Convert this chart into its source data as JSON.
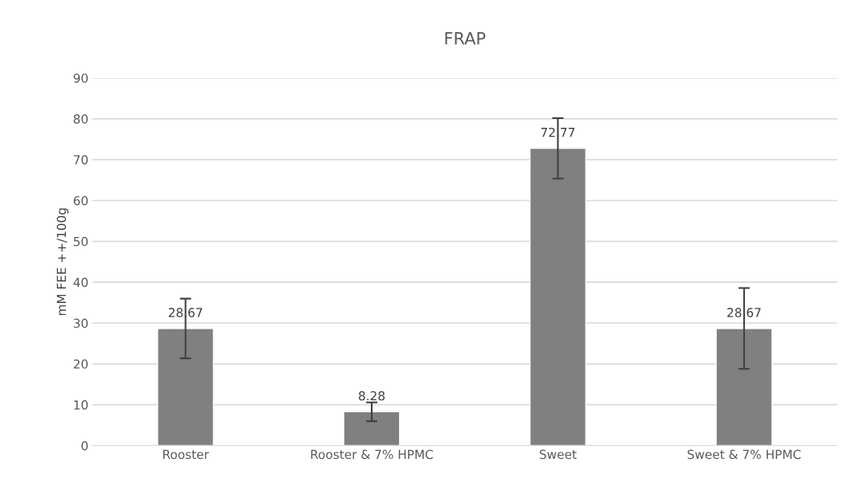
{
  "chart_data": {
    "type": "bar",
    "title": "FRAP",
    "ylabel": "mM FEE ++/100g",
    "categories": [
      "Rooster",
      "Rooster & 7% HPMC",
      "Sweet",
      "Sweet & 7% HPMC"
    ],
    "values": [
      28.67,
      8.28,
      72.77,
      28.67
    ],
    "errors": [
      7.3,
      2.3,
      7.4,
      9.9
    ],
    "color": "#808080",
    "ylim": [
      0,
      90
    ],
    "yticks": [
      0,
      10,
      20,
      30,
      40,
      50,
      60,
      70,
      80,
      90
    ],
    "grid": "y",
    "data_labels": true,
    "legend": false
  }
}
